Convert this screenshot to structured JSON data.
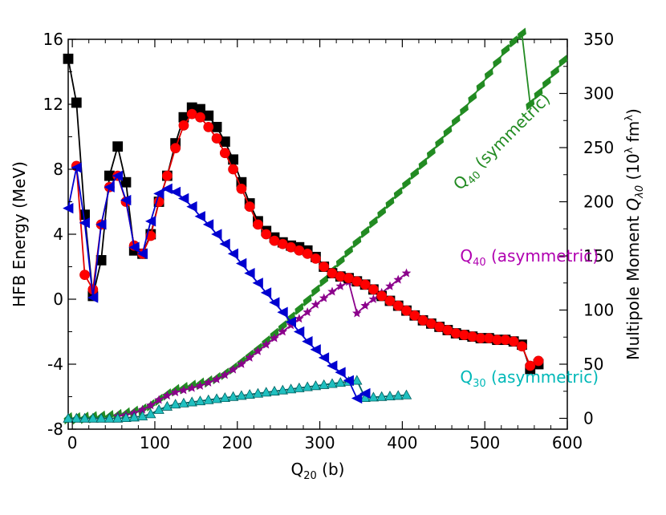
{
  "chart_data": {
    "type": "line",
    "title": "",
    "xlabel": "Q20 (b)",
    "xlabel_main": "Q",
    "xlabel_sub": "20",
    "xlabel_unit": " (b)",
    "ylabel_left": "HFB Energy (MeV)",
    "ylabel_right": "Multipole Moment  Qλ0  (10λ fm^λ)",
    "ylabel_right_parts": {
      "prefix": "Multipole Moment  ",
      "q": "Q",
      "q_sub": "λ0",
      "unit_open": "  (10",
      "unit_sup": "λ",
      "unit_mid": " fm",
      "unit_sup2": "λ",
      "unit_close": ")"
    },
    "xlim": [
      -5,
      600
    ],
    "ylim_left": [
      -8,
      16
    ],
    "ylim_right": [
      -10,
      350
    ],
    "x_ticks": [
      "0",
      "100",
      "200",
      "300",
      "400",
      "500",
      "600"
    ],
    "x_tick_values": [
      0,
      100,
      200,
      300,
      400,
      500,
      600
    ],
    "y_left_ticks": [
      "-8",
      "-4",
      "0",
      "4",
      "8",
      "12",
      "16"
    ],
    "y_left_tick_values": [
      -8,
      -4,
      0,
      4,
      8,
      12,
      16
    ],
    "y_right_ticks": [
      "0",
      "50",
      "100",
      "150",
      "200",
      "250",
      "300",
      "350"
    ],
    "y_right_tick_values": [
      0,
      50,
      100,
      150,
      200,
      250,
      300,
      350
    ],
    "annotations": [
      {
        "main": "Q",
        "sub": "40",
        "rest": " (symmetric)",
        "color": "#228b22",
        "x": 470,
        "y": 210,
        "rotate": -45
      },
      {
        "main": "Q",
        "sub": "40",
        "rest": " (asymmetric)",
        "color": "#b000b0",
        "x": 470,
        "y": 145,
        "rotate": 0
      },
      {
        "main": "Q",
        "sub": "30",
        "rest": " (asymmetric)",
        "color": "#00b8b8",
        "x": 470,
        "y": 33,
        "rotate": 0
      }
    ],
    "series": [
      {
        "name": "HFB energy (black squares)",
        "axis": "left",
        "color": "#000000",
        "marker": "square",
        "fill": "#000000",
        "x": [
          -5,
          5,
          15,
          25,
          35,
          45,
          55,
          65,
          75,
          85,
          95,
          105,
          115,
          125,
          135,
          145,
          155,
          165,
          175,
          185,
          195,
          205,
          215,
          225,
          235,
          245,
          255,
          265,
          275,
          285,
          295,
          305,
          315,
          325,
          335,
          345,
          355,
          365,
          375,
          385,
          395,
          405,
          415,
          425,
          435,
          445,
          455,
          465,
          475,
          485,
          495,
          505,
          515,
          525,
          535,
          545,
          555,
          565
        ],
        "y": [
          14.8,
          12.1,
          5.2,
          0.2,
          2.4,
          7.6,
          9.4,
          7.2,
          3.0,
          2.8,
          4.0,
          6.0,
          7.6,
          9.6,
          11.2,
          11.8,
          11.7,
          11.3,
          10.6,
          9.7,
          8.6,
          7.2,
          5.9,
          4.8,
          4.2,
          3.8,
          3.5,
          3.3,
          3.2,
          3.0,
          2.6,
          2.0,
          1.6,
          1.4,
          1.3,
          1.1,
          0.9,
          0.6,
          0.2,
          -0.1,
          -0.4,
          -0.7,
          -1.0,
          -1.3,
          -1.5,
          -1.7,
          -1.9,
          -2.1,
          -2.2,
          -2.3,
          -2.4,
          -2.4,
          -2.5,
          -2.5,
          -2.6,
          -2.8,
          -4.3,
          -4.0
        ],
        "segment_break_at": 55
      },
      {
        "name": "HFB energy (red circles)",
        "axis": "left",
        "color": "#e00000",
        "marker": "circle",
        "fill": "#ff0000",
        "x": [
          5,
          15,
          25,
          35,
          45,
          55,
          65,
          75,
          85,
          95,
          105,
          115,
          125,
          135,
          145,
          155,
          165,
          175,
          185,
          195,
          205,
          215,
          225,
          235,
          245,
          255,
          265,
          275,
          285,
          295,
          305,
          315,
          325,
          335,
          345,
          355,
          365,
          375,
          385,
          395,
          405,
          415,
          425,
          435,
          445,
          455,
          465,
          475,
          485,
          495,
          505,
          515,
          525,
          535,
          545,
          555,
          565
        ],
        "y": [
          8.2,
          1.5,
          0.6,
          4.6,
          6.9,
          7.6,
          6.0,
          3.3,
          2.8,
          3.9,
          6.0,
          7.6,
          9.3,
          10.7,
          11.4,
          11.2,
          10.6,
          9.9,
          9.0,
          8.0,
          6.8,
          5.7,
          4.6,
          4.0,
          3.6,
          3.4,
          3.2,
          3.0,
          2.8,
          2.5,
          2.0,
          1.6,
          1.4,
          1.3,
          1.1,
          0.9,
          0.6,
          0.2,
          -0.1,
          -0.4,
          -0.7,
          -1.0,
          -1.3,
          -1.5,
          -1.7,
          -1.9,
          -2.1,
          -2.2,
          -2.3,
          -2.4,
          -2.4,
          -2.5,
          -2.5,
          -2.6,
          -2.9,
          -4.1,
          -3.8
        ],
        "segment_break_at": 55
      },
      {
        "name": "HFB energy (blue triangles)",
        "axis": "left",
        "color": "#0000d0",
        "marker": "triangle-left",
        "fill": "#0000d0",
        "x": [
          -5,
          5,
          15,
          25,
          35,
          45,
          55,
          65,
          75,
          85,
          95,
          105,
          115,
          125,
          135,
          145,
          155,
          165,
          175,
          185,
          195,
          205,
          215,
          225,
          235,
          245,
          255,
          265,
          275,
          285,
          295,
          305,
          315,
          325,
          335,
          345,
          355
        ],
        "y": [
          5.6,
          8.1,
          4.7,
          0.1,
          4.6,
          6.9,
          7.6,
          6.1,
          3.2,
          2.8,
          4.8,
          6.5,
          6.8,
          6.6,
          6.2,
          5.7,
          5.1,
          4.6,
          4.0,
          3.4,
          2.8,
          2.2,
          1.6,
          1.0,
          0.4,
          -0.2,
          -0.8,
          -1.4,
          -2.0,
          -2.6,
          -3.1,
          -3.6,
          -4.1,
          -4.5,
          -5.0,
          -6.1,
          -5.8
        ],
        "segment_break_at": 35
      },
      {
        "name": "Q40 (symmetric)",
        "axis": "right",
        "color": "#228b22",
        "marker": "diamond",
        "fill": "#228b22",
        "x": [
          -5,
          5,
          15,
          25,
          35,
          45,
          55,
          65,
          75,
          85,
          95,
          105,
          115,
          125,
          135,
          145,
          155,
          165,
          175,
          185,
          195,
          205,
          215,
          225,
          235,
          245,
          255,
          265,
          275,
          285,
          295,
          305,
          315,
          325,
          335,
          345,
          355,
          365,
          375,
          385,
          395,
          405,
          415,
          425,
          435,
          445,
          455,
          465,
          475,
          485,
          495,
          505,
          515,
          525,
          535,
          545,
          555,
          565,
          575,
          585,
          595
        ],
        "y": [
          0,
          0,
          0.5,
          1,
          1.5,
          2,
          3,
          4.5,
          6,
          8,
          12,
          17,
          22,
          26,
          28,
          30,
          32,
          34,
          37,
          41,
          46,
          52,
          58,
          64,
          71,
          78,
          85,
          93,
          101,
          109,
          118,
          127,
          136,
          145,
          154,
          163,
          172,
          181,
          190,
          199,
          208,
          217,
          226,
          235,
          245,
          255,
          265,
          275,
          285,
          296,
          307,
          318,
          329,
          340,
          348,
          355,
          290,
          300,
          310,
          320,
          330
        ],
        "segment_break_at": 56
      },
      {
        "name": "Q40 (asymmetric)",
        "axis": "right",
        "color": "#8b008b",
        "marker": "star",
        "fill": "#8b008b",
        "x": [
          55,
          65,
          75,
          85,
          95,
          105,
          115,
          125,
          135,
          145,
          155,
          165,
          175,
          185,
          195,
          205,
          215,
          225,
          235,
          245,
          255,
          265,
          275,
          285,
          295,
          305,
          315,
          325,
          335,
          345,
          355,
          365,
          375,
          385,
          395,
          405
        ],
        "y": [
          2,
          3,
          5,
          8,
          12,
          17,
          21,
          24,
          26,
          28,
          30,
          33,
          36,
          40,
          45,
          50,
          56,
          62,
          68,
          74,
          80,
          86,
          92,
          98,
          105,
          111,
          117,
          122,
          126,
          97,
          104,
          110,
          116,
          122,
          128,
          134
        ],
        "segment_break_at": 29
      },
      {
        "name": "Q30 (asymmetric)",
        "axis": "right",
        "color": "#006060",
        "marker": "triangle-up",
        "fill": "#20c0c0",
        "x": [
          -5,
          5,
          15,
          25,
          35,
          45,
          55,
          65,
          75,
          85,
          95,
          105,
          115,
          125,
          135,
          145,
          155,
          165,
          175,
          185,
          195,
          205,
          215,
          225,
          235,
          245,
          255,
          265,
          275,
          285,
          295,
          305,
          315,
          325,
          335,
          345,
          355,
          365,
          375,
          385,
          395,
          405
        ],
        "y": [
          0,
          0,
          0,
          0,
          0,
          0,
          0,
          0.5,
          1,
          2,
          4,
          8,
          11,
          13,
          14,
          15,
          16,
          17,
          18,
          19,
          20,
          21,
          22,
          23,
          24,
          25,
          26,
          27,
          28,
          29,
          30,
          31,
          32,
          33,
          34,
          35,
          19,
          19.5,
          20,
          20.5,
          21,
          21.5
        ],
        "segment_break_at": 35
      }
    ]
  }
}
